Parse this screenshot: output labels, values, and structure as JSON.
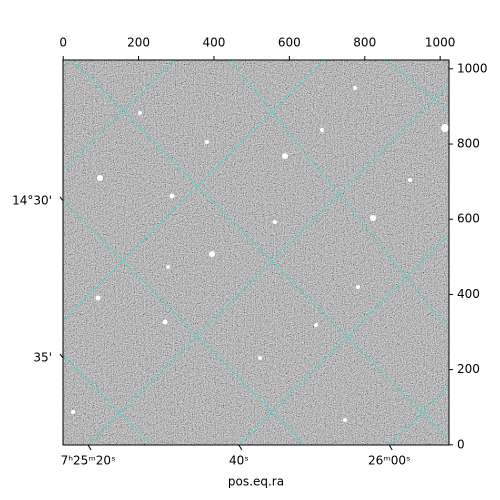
{
  "chart_data": {
    "type": "image",
    "x_label": "pos.eq.ra",
    "xlim": [
      -0.5,
      1023.5
    ],
    "ylim": [
      -0.5,
      1023.5
    ],
    "xticks": [
      0,
      200,
      400,
      600,
      800,
      1000
    ],
    "yticks": [
      0,
      200,
      400,
      600,
      800,
      1000
    ],
    "ra_ticks": [
      {
        "value": 66,
        "label": "7ʰ25ᵐ20ˢ"
      },
      {
        "value": 466,
        "label": "40ˢ"
      },
      {
        "value": 865,
        "label": "26ᵐ00ˢ"
      }
    ],
    "dec_ticks": [
      {
        "value": 649,
        "label": "14°30'"
      },
      {
        "value": 231,
        "label": "35'"
      }
    ],
    "grid_color": "#3fd6d6"
  }
}
